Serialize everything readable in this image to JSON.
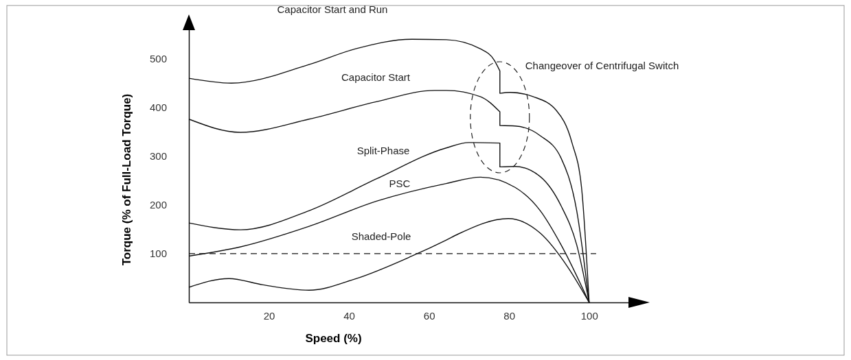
{
  "chart_data": {
    "type": "line",
    "xlabel": "Speed (%)",
    "ylabel": "Torque (% of Full-Load Torque)",
    "xlim": [
      0,
      110
    ],
    "ylim": [
      0,
      560
    ],
    "xticks": [
      20,
      40,
      60,
      80,
      100
    ],
    "yticks": [
      100,
      200,
      300,
      400,
      500
    ],
    "grid": false,
    "legend": false,
    "marker": "none",
    "line_style": "solid",
    "series": [
      {
        "name": "Capacitor Start and Run",
        "color": "#111111",
        "x": [
          0,
          10.6,
          30,
          41.5,
          55.7,
          64.3,
          72.9,
          76.3,
          77.7,
          77.7,
          80.3,
          86.1,
          91.8,
          95.7,
          98.1,
          100
        ],
        "values": [
          460,
          450,
          488,
          520,
          540,
          539,
          520,
          497,
          475,
          429,
          431,
          422,
          394,
          328,
          236,
          0
        ]
      },
      {
        "name": "Capacitor Start",
        "color": "#111111",
        "x": [
          0,
          12.9,
          30,
          47,
          61.4,
          64.3,
          72.9,
          77.7,
          77.7,
          81.5,
          87.8,
          93,
          96.9,
          100
        ],
        "values": [
          376,
          349,
          376,
          412,
          435,
          435,
          422,
          391,
          363,
          362,
          342,
          296,
          188,
          0
        ]
      },
      {
        "name": "Split-Phase",
        "color": "#111111",
        "x": [
          0,
          12.9,
          30,
          47,
          64.3,
          70,
          77.7,
          77.7,
          81.5,
          87.8,
          93,
          96.9,
          100
        ],
        "values": [
          163,
          149,
          188,
          254,
          317,
          328,
          327,
          278,
          279,
          258,
          198,
          118,
          0
        ]
      },
      {
        "name": "PSC",
        "color": "#111111",
        "x": [
          0,
          12.9,
          30,
          47,
          64.3,
          72.9,
          81.5,
          87.8,
          93,
          100
        ],
        "values": [
          95,
          114,
          156,
          208,
          244,
          257,
          236,
          188,
          118,
          0
        ]
      },
      {
        "name": "Shaded-Pole",
        "color": "#111111",
        "x": [
          0,
          10,
          18.5,
          30,
          41.5,
          55.7,
          64.3,
          67.2,
          79.8,
          87.8,
          94.7,
          100
        ],
        "values": [
          31,
          49,
          36,
          25,
          48,
          95,
          128,
          140,
          172,
          142,
          72,
          0
        ]
      }
    ],
    "ref_lines": [
      {
        "axis": "y",
        "value": 100,
        "line_style": "dashed",
        "color": "#111111"
      }
    ],
    "annotations": [
      "Changeover of Centrifugal Switch"
    ]
  }
}
